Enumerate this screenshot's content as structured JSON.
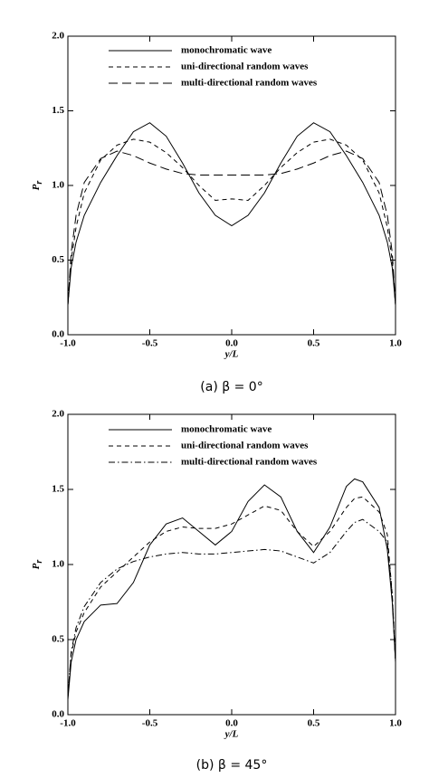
{
  "chart_data": [
    {
      "type": "line",
      "y_label": {
        "main": "P",
        "sub": "r"
      },
      "x_label": "y/L",
      "caption": "(a)  β = 0°",
      "xlim": [
        -1,
        1
      ],
      "ylim": [
        0,
        2
      ],
      "xticks": [
        {
          "value": -1,
          "label": "-1.0"
        },
        {
          "value": -0.5,
          "label": "-0.5"
        },
        {
          "value": 0,
          "label": "0.0"
        },
        {
          "value": 0.5,
          "label": "0.5"
        },
        {
          "value": 1,
          "label": "1.0"
        }
      ],
      "yticks": [
        {
          "value": 0,
          "label": "0.0"
        },
        {
          "value": 0.5,
          "label": "0.5"
        },
        {
          "value": 1,
          "label": "1.0"
        },
        {
          "value": 1.5,
          "label": "1.5"
        },
        {
          "value": 2,
          "label": "2.0"
        }
      ],
      "x": [
        -1,
        -0.98,
        -0.95,
        -0.9,
        -0.8,
        -0.7,
        -0.6,
        -0.5,
        -0.4,
        -0.3,
        -0.2,
        -0.1,
        0,
        0.1,
        0.2,
        0.3,
        0.4,
        0.5,
        0.6,
        0.7,
        0.8,
        0.9,
        0.95,
        0.98,
        1
      ],
      "series": [
        {
          "name": "monochromatic wave",
          "color": "#000000",
          "dash": "solid",
          "values": [
            0.2,
            0.45,
            0.62,
            0.8,
            1.02,
            1.2,
            1.36,
            1.42,
            1.33,
            1.15,
            0.95,
            0.8,
            0.73,
            0.8,
            0.95,
            1.15,
            1.33,
            1.42,
            1.36,
            1.2,
            1.02,
            0.8,
            0.62,
            0.45,
            0.2
          ]
        },
        {
          "name": "uni-directional random waves",
          "color": "#000000",
          "dash": "dashed",
          "values": [
            0.2,
            0.5,
            0.72,
            0.95,
            1.17,
            1.27,
            1.31,
            1.29,
            1.22,
            1.12,
            1.0,
            0.9,
            0.91,
            0.9,
            1.0,
            1.12,
            1.22,
            1.29,
            1.31,
            1.27,
            1.17,
            0.95,
            0.72,
            0.5,
            0.2
          ]
        },
        {
          "name": "multi-directional random waves",
          "color": "#000000",
          "dash": "longdash",
          "values": [
            0.2,
            0.55,
            0.8,
            1.02,
            1.18,
            1.23,
            1.2,
            1.15,
            1.11,
            1.08,
            1.07,
            1.07,
            1.07,
            1.07,
            1.07,
            1.08,
            1.11,
            1.15,
            1.2,
            1.23,
            1.18,
            1.02,
            0.8,
            0.55,
            0.2
          ]
        }
      ]
    },
    {
      "type": "line",
      "y_label": {
        "main": "P",
        "sub": "r"
      },
      "x_label": "y/L",
      "caption": "(b)  β = 45°",
      "xlim": [
        -1,
        1
      ],
      "ylim": [
        0,
        2
      ],
      "xticks": [
        {
          "value": -1,
          "label": "-1.0"
        },
        {
          "value": -0.5,
          "label": "-0.5"
        },
        {
          "value": 0,
          "label": "0.0"
        },
        {
          "value": 0.5,
          "label": "0.5"
        },
        {
          "value": 1,
          "label": "1.0"
        }
      ],
      "yticks": [
        {
          "value": 0,
          "label": "0.0"
        },
        {
          "value": 0.5,
          "label": "0.5"
        },
        {
          "value": 1,
          "label": "1.0"
        },
        {
          "value": 1.5,
          "label": "1.5"
        },
        {
          "value": 2,
          "label": "2.0"
        }
      ],
      "x": [
        -1,
        -0.98,
        -0.95,
        -0.9,
        -0.8,
        -0.7,
        -0.6,
        -0.5,
        -0.4,
        -0.3,
        -0.2,
        -0.1,
        0,
        0.1,
        0.2,
        0.3,
        0.4,
        0.5,
        0.6,
        0.7,
        0.75,
        0.8,
        0.9,
        0.95,
        0.98,
        1
      ],
      "series": [
        {
          "name": "monochromatic wave",
          "color": "#000000",
          "dash": "solid",
          "values": [
            0.1,
            0.35,
            0.5,
            0.62,
            0.73,
            0.74,
            0.88,
            1.13,
            1.27,
            1.31,
            1.22,
            1.13,
            1.22,
            1.42,
            1.53,
            1.45,
            1.22,
            1.08,
            1.25,
            1.52,
            1.57,
            1.55,
            1.38,
            1.1,
            0.75,
            0.35
          ]
        },
        {
          "name": "uni-directional random waves",
          "color": "#000000",
          "dash": "dashed",
          "values": [
            0.12,
            0.4,
            0.55,
            0.68,
            0.85,
            0.95,
            1.05,
            1.15,
            1.22,
            1.25,
            1.24,
            1.24,
            1.27,
            1.33,
            1.39,
            1.36,
            1.22,
            1.12,
            1.22,
            1.38,
            1.44,
            1.45,
            1.35,
            1.2,
            0.8,
            0.35
          ]
        },
        {
          "name": "multi-directional random waves",
          "color": "#000000",
          "dash": "dashdot",
          "values": [
            0.12,
            0.42,
            0.58,
            0.72,
            0.88,
            0.97,
            1.02,
            1.05,
            1.07,
            1.08,
            1.07,
            1.07,
            1.08,
            1.09,
            1.1,
            1.09,
            1.05,
            1.01,
            1.08,
            1.22,
            1.28,
            1.3,
            1.22,
            1.15,
            0.8,
            0.35
          ]
        }
      ]
    }
  ]
}
